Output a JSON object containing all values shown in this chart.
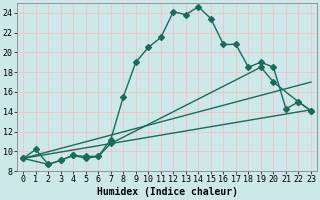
{
  "title": "",
  "xlabel": "Humidex (Indice chaleur)",
  "background_color": "#cce8e8",
  "grid_color": "#f0c8c8",
  "line_color": "#1a6b5a",
  "xlim": [
    -0.5,
    23.5
  ],
  "ylim": [
    8,
    25
  ],
  "xticks": [
    0,
    1,
    2,
    3,
    4,
    5,
    6,
    7,
    8,
    9,
    10,
    11,
    12,
    13,
    14,
    15,
    16,
    17,
    18,
    19,
    20,
    21,
    22,
    23
  ],
  "yticks": [
    8,
    10,
    12,
    14,
    16,
    18,
    20,
    22,
    24
  ],
  "line1_x": [
    0,
    1,
    2,
    3,
    4,
    5,
    6,
    7,
    8,
    9,
    10,
    11,
    12,
    13,
    14,
    15,
    16,
    17,
    18,
    19,
    20,
    21,
    22,
    23
  ],
  "line1_y": [
    9.3,
    10.2,
    8.7,
    9.1,
    9.6,
    9.5,
    9.5,
    11.2,
    15.5,
    19.0,
    20.5,
    21.5,
    24.1,
    23.8,
    24.6,
    23.4,
    20.8,
    20.8,
    18.5,
    19.0,
    18.5,
    14.3,
    15.0,
    14.1
  ],
  "line2_x": [
    0,
    2,
    3,
    4,
    5,
    6,
    7,
    19,
    20,
    22,
    23
  ],
  "line2_y": [
    9.3,
    8.7,
    9.1,
    9.6,
    9.3,
    9.5,
    10.8,
    18.5,
    17.0,
    15.0,
    14.1
  ],
  "line3_x": [
    0,
    23
  ],
  "line3_y": [
    9.3,
    17.0
  ],
  "line4_x": [
    0,
    23
  ],
  "line4_y": [
    9.3,
    14.2
  ],
  "marker_size": 3,
  "line_width": 1.0,
  "label_fontsize": 7,
  "tick_fontsize": 6
}
